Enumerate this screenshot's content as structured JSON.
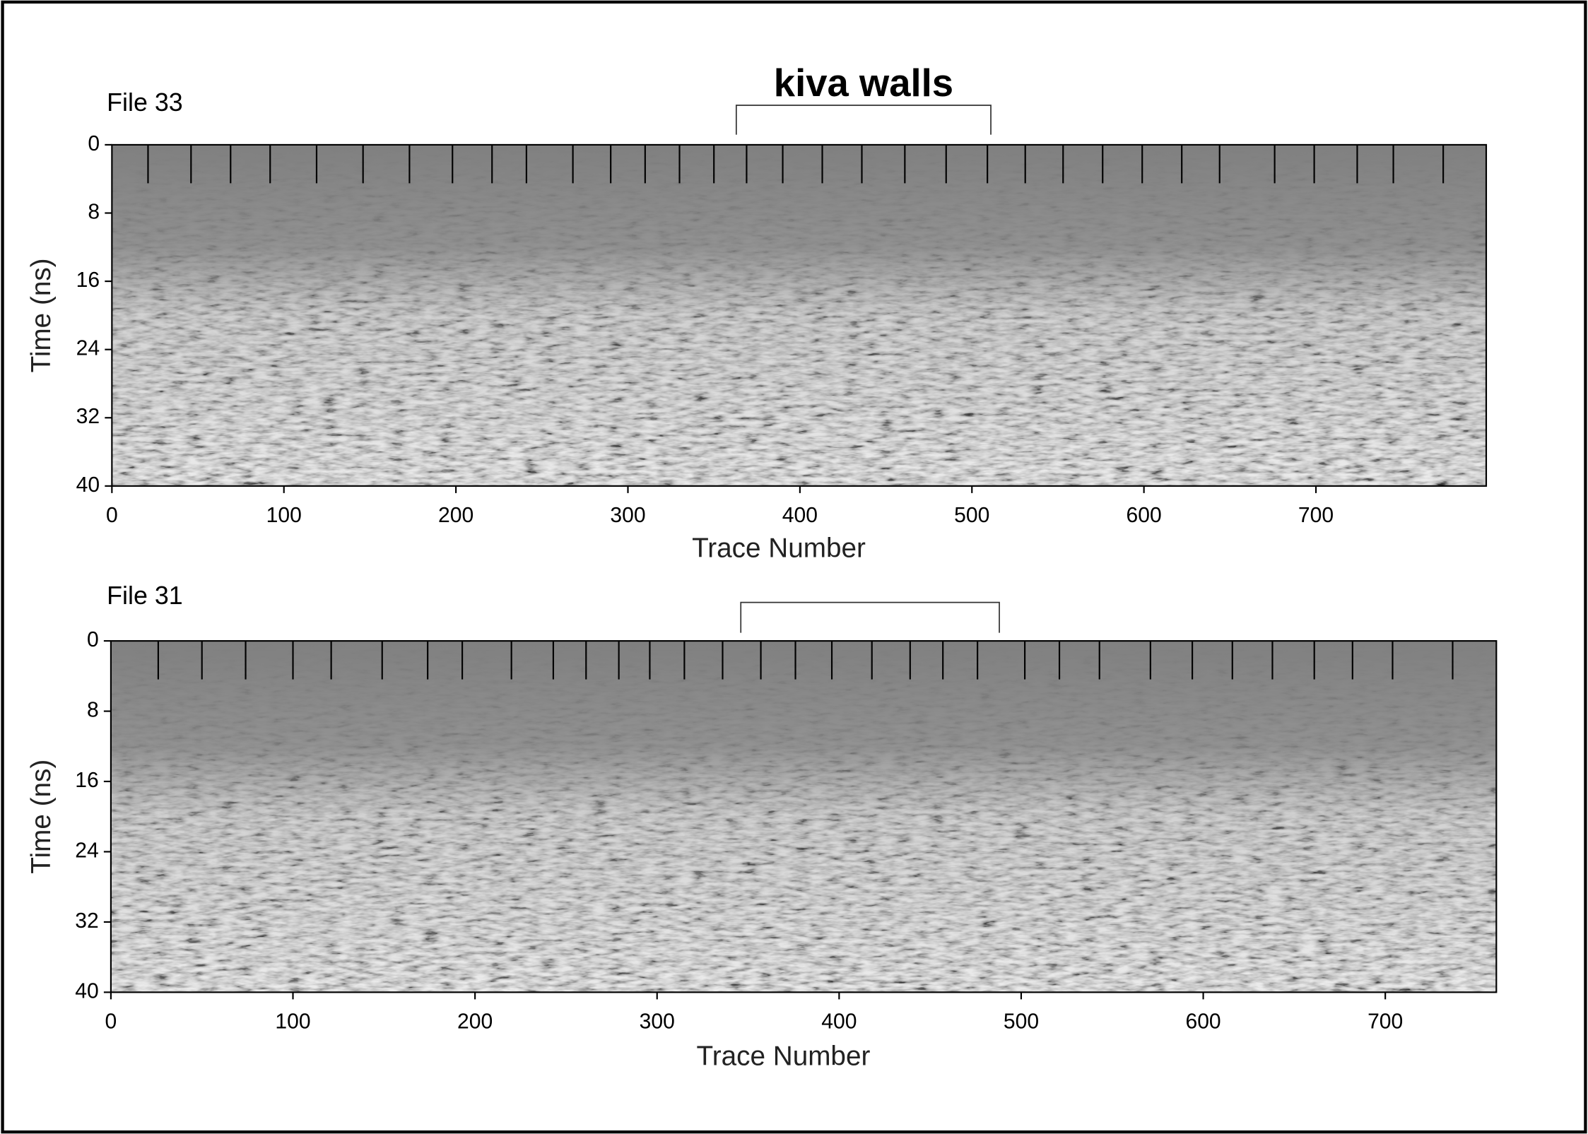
{
  "chart_data": [
    {
      "type": "radargram",
      "title": "kiva walls",
      "subtitle": "File 33",
      "xlabel": "Trace Number",
      "ylabel": "Time (ns)",
      "xlim": [
        0,
        799
      ],
      "ylim": [
        0,
        40
      ],
      "y_inverted": true,
      "xticks": [
        0,
        100,
        200,
        300,
        400,
        500,
        600,
        700
      ],
      "yticks": [
        0,
        8,
        16,
        24,
        32,
        40
      ],
      "markers": [
        21,
        46,
        69,
        92,
        119,
        146,
        173,
        198,
        221,
        241,
        268,
        290,
        310,
        330,
        350,
        369,
        390,
        413,
        436,
        461,
        485,
        509,
        531,
        553,
        576,
        599,
        622,
        644,
        676,
        699,
        724,
        745,
        774
      ],
      "bracket": [
        363,
        511
      ]
    },
    {
      "type": "radargram",
      "subtitle": "File 31",
      "xlabel": "Trace Number",
      "ylabel": "Time (ns)",
      "xlim": [
        0,
        761
      ],
      "ylim": [
        0,
        40
      ],
      "y_inverted": true,
      "xticks": [
        0,
        100,
        200,
        300,
        400,
        500,
        600,
        700
      ],
      "yticks": [
        0,
        8,
        16,
        24,
        32,
        40
      ],
      "markers": [
        26,
        50,
        74,
        100,
        121,
        149,
        174,
        193,
        220,
        243,
        261,
        279,
        296,
        315,
        336,
        357,
        376,
        396,
        418,
        439,
        457,
        476,
        502,
        521,
        543,
        571,
        594,
        616,
        638,
        661,
        682,
        704,
        737
      ],
      "bracket": [
        346,
        488
      ]
    }
  ]
}
